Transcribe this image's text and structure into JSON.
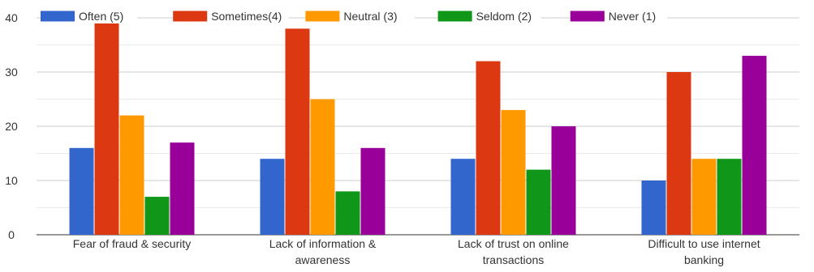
{
  "chart_data": {
    "type": "bar",
    "title": "",
    "xlabel": "",
    "ylabel": "",
    "ylim": [
      0,
      40
    ],
    "yticks": [
      0,
      10,
      20,
      30,
      40
    ],
    "grid": true,
    "legend_position": "top",
    "categories": [
      [
        "Fear of fraud & security"
      ],
      [
        "Lack of information &",
        "awareness"
      ],
      [
        "Lack of trust on online",
        "transactions"
      ],
      [
        "Difficult to use internet",
        "banking"
      ]
    ],
    "series": [
      {
        "name": "Often (5)",
        "color": "#3366cc",
        "values": [
          16,
          14,
          14,
          10
        ]
      },
      {
        "name": "Sometimes(4)",
        "color": "#dc3912",
        "values": [
          39,
          38,
          32,
          30
        ]
      },
      {
        "name": "Neutral (3)",
        "color": "#ff9900",
        "values": [
          22,
          25,
          23,
          14
        ]
      },
      {
        "name": "Seldom (2)",
        "color": "#109618",
        "values": [
          7,
          8,
          12,
          14
        ]
      },
      {
        "name": "Never (1)",
        "color": "#990099",
        "values": [
          17,
          16,
          20,
          33
        ]
      }
    ]
  }
}
